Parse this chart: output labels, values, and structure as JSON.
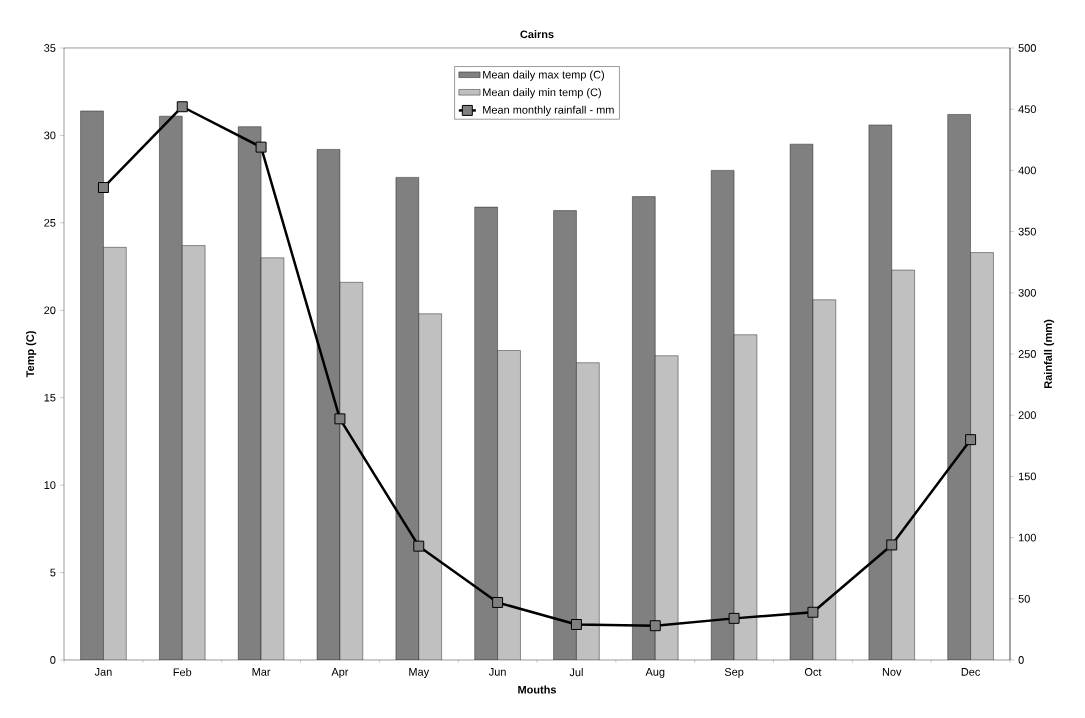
{
  "chart_data": {
    "type": "bar",
    "title": "Cairns",
    "xlabel": "Mouths",
    "ylabel": "Temp (C)",
    "y2label": "Rainfall (mm)",
    "categories": [
      "Jan",
      "Feb",
      "Mar",
      "Apr",
      "May",
      "Jun",
      "Jul",
      "Aug",
      "Sep",
      "Oct",
      "Nov",
      "Dec"
    ],
    "series": [
      {
        "name": "Mean daily max temp (C)",
        "color": "#808080",
        "values": [
          31.4,
          31.1,
          30.5,
          29.2,
          27.6,
          25.9,
          25.7,
          26.5,
          28.0,
          29.5,
          30.6,
          31.2
        ]
      },
      {
        "name": "Mean daily min temp (C)",
        "color": "#c0c0c0",
        "values": [
          23.6,
          23.7,
          23.0,
          21.6,
          19.8,
          17.7,
          17.0,
          17.4,
          18.6,
          20.6,
          22.3,
          23.3
        ]
      },
      {
        "name": "Mean monthly rainfall - mm",
        "color": "#000000",
        "type": "line",
        "axis": "y2",
        "values": [
          386,
          452,
          419,
          197,
          93,
          47,
          29,
          28,
          34,
          39,
          94,
          180
        ]
      }
    ],
    "ylim": [
      0,
      35
    ],
    "yticks": [
      0,
      5,
      10,
      15,
      20,
      25,
      30,
      35
    ],
    "y2lim": [
      0,
      500
    ],
    "y2ticks": [
      0,
      50,
      100,
      150,
      200,
      250,
      300,
      350,
      400,
      450,
      500
    ],
    "grid": false,
    "legend": "top",
    "marker": "square",
    "line_style": "solid"
  }
}
